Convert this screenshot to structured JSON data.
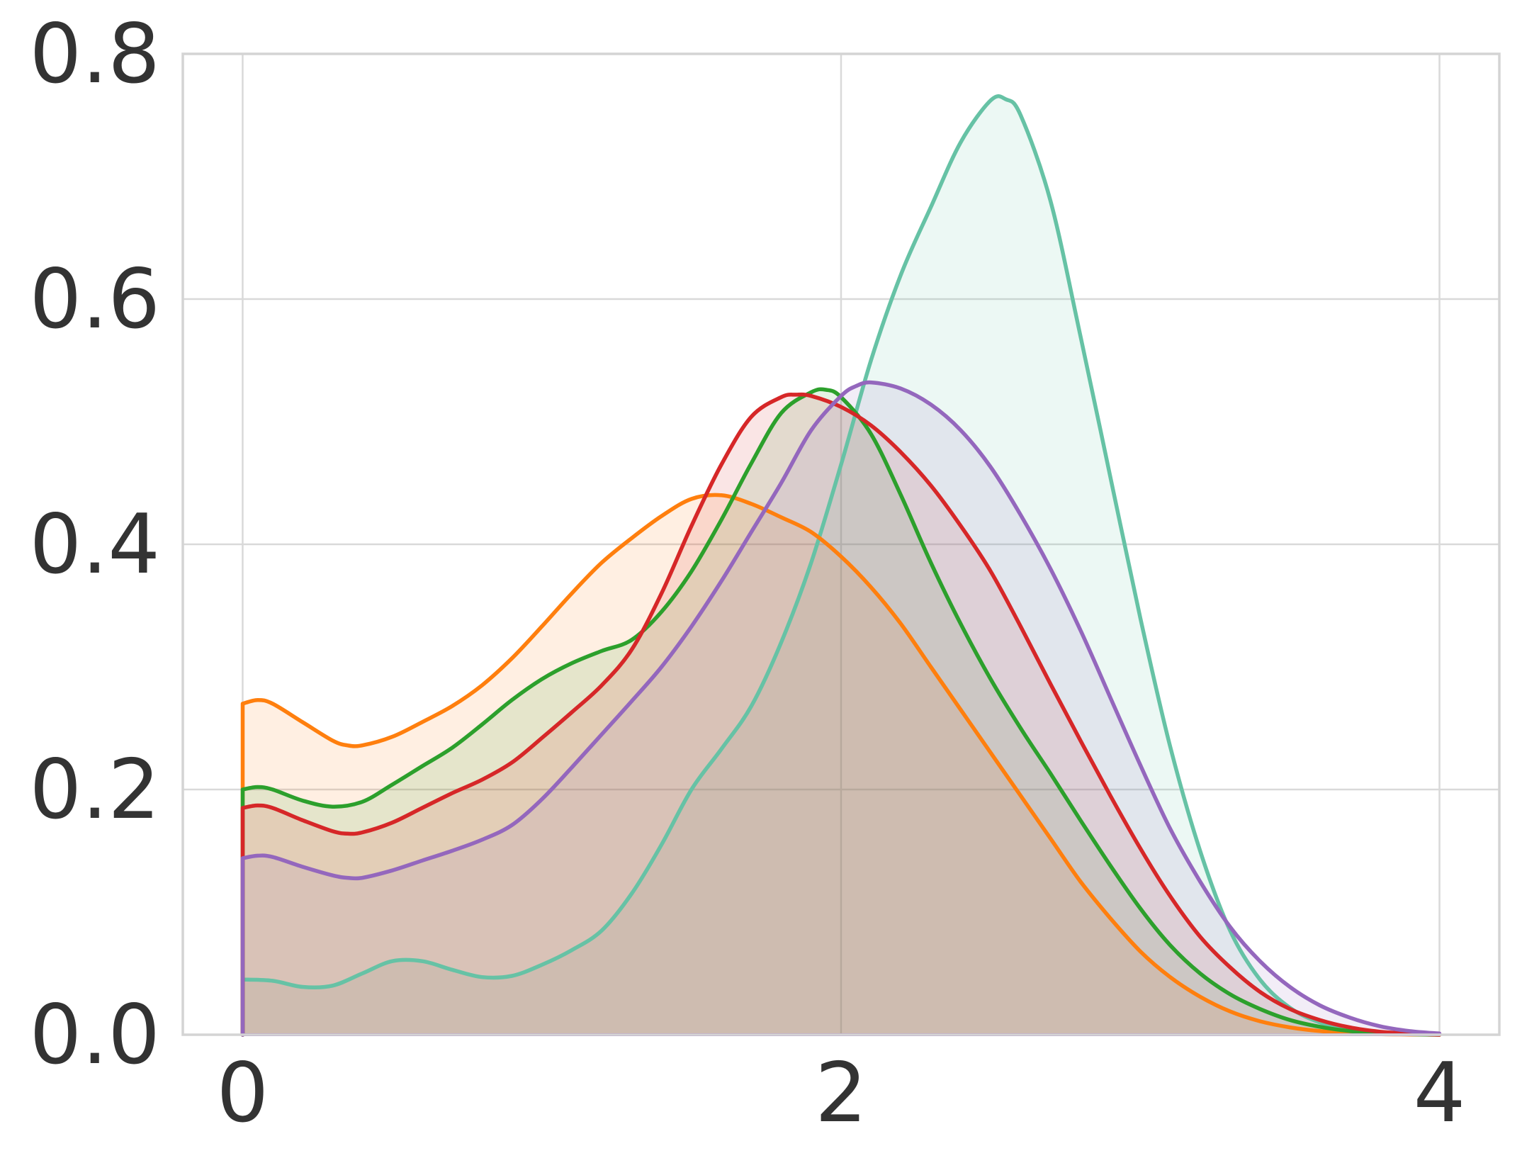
{
  "chart_data": {
    "type": "area",
    "title": "",
    "xlabel": "",
    "ylabel": "",
    "xlim": [
      -0.2,
      4.2
    ],
    "ylim": [
      0,
      0.8
    ],
    "xticks": [
      0,
      2,
      4
    ],
    "xtick_labels": [
      "0",
      "2",
      "4"
    ],
    "yticks": [
      0,
      0.2,
      0.4,
      0.6,
      0.8
    ],
    "ytick_labels": [
      "0.0",
      "0.2",
      "0.4",
      "0.6",
      "0.8"
    ],
    "grid": true,
    "legend": "none",
    "fill_opacity": 0.12,
    "series": [
      {
        "color": "#66c2a5",
        "points": [
          [
            0,
            0.045
          ],
          [
            0.1,
            0.044
          ],
          [
            0.2,
            0.039
          ],
          [
            0.3,
            0.04
          ],
          [
            0.4,
            0.05
          ],
          [
            0.5,
            0.06
          ],
          [
            0.6,
            0.06
          ],
          [
            0.7,
            0.053
          ],
          [
            0.8,
            0.047
          ],
          [
            0.9,
            0.048
          ],
          [
            1.0,
            0.057
          ],
          [
            1.1,
            0.069
          ],
          [
            1.2,
            0.085
          ],
          [
            1.3,
            0.115
          ],
          [
            1.4,
            0.155
          ],
          [
            1.5,
            0.2
          ],
          [
            1.6,
            0.233
          ],
          [
            1.7,
            0.268
          ],
          [
            1.8,
            0.32
          ],
          [
            1.9,
            0.385
          ],
          [
            2.0,
            0.465
          ],
          [
            2.1,
            0.55
          ],
          [
            2.2,
            0.62
          ],
          [
            2.3,
            0.675
          ],
          [
            2.4,
            0.728
          ],
          [
            2.5,
            0.762
          ],
          [
            2.55,
            0.763
          ],
          [
            2.6,
            0.75
          ],
          [
            2.7,
            0.68
          ],
          [
            2.8,
            0.57
          ],
          [
            2.9,
            0.455
          ],
          [
            3.0,
            0.34
          ],
          [
            3.1,
            0.235
          ],
          [
            3.2,
            0.15
          ],
          [
            3.3,
            0.085
          ],
          [
            3.4,
            0.045
          ],
          [
            3.5,
            0.022
          ],
          [
            3.6,
            0.01
          ],
          [
            3.7,
            0.004
          ],
          [
            3.8,
            0.0015
          ],
          [
            3.9,
            0.0005
          ],
          [
            4.0,
            0.0
          ]
        ]
      },
      {
        "color": "#ff7f0e",
        "points": [
          [
            0,
            0.27
          ],
          [
            0.05,
            0.273
          ],
          [
            0.1,
            0.27
          ],
          [
            0.2,
            0.255
          ],
          [
            0.3,
            0.24
          ],
          [
            0.35,
            0.236
          ],
          [
            0.4,
            0.236
          ],
          [
            0.5,
            0.243
          ],
          [
            0.6,
            0.255
          ],
          [
            0.7,
            0.268
          ],
          [
            0.8,
            0.285
          ],
          [
            0.9,
            0.307
          ],
          [
            1.0,
            0.333
          ],
          [
            1.1,
            0.36
          ],
          [
            1.2,
            0.385
          ],
          [
            1.3,
            0.405
          ],
          [
            1.4,
            0.423
          ],
          [
            1.5,
            0.437
          ],
          [
            1.6,
            0.44
          ],
          [
            1.7,
            0.433
          ],
          [
            1.8,
            0.422
          ],
          [
            1.9,
            0.41
          ],
          [
            2.0,
            0.39
          ],
          [
            2.1,
            0.365
          ],
          [
            2.2,
            0.335
          ],
          [
            2.3,
            0.3
          ],
          [
            2.4,
            0.265
          ],
          [
            2.5,
            0.23
          ],
          [
            2.6,
            0.195
          ],
          [
            2.7,
            0.16
          ],
          [
            2.8,
            0.125
          ],
          [
            2.9,
            0.095
          ],
          [
            3.0,
            0.068
          ],
          [
            3.1,
            0.047
          ],
          [
            3.2,
            0.031
          ],
          [
            3.3,
            0.019
          ],
          [
            3.4,
            0.011
          ],
          [
            3.5,
            0.006
          ],
          [
            3.6,
            0.003
          ],
          [
            3.7,
            0.0013
          ],
          [
            3.8,
            0.0005
          ],
          [
            3.9,
            0.0002
          ],
          [
            4.0,
            0.0
          ]
        ]
      },
      {
        "color": "#2ca02c",
        "points": [
          [
            0,
            0.2
          ],
          [
            0.05,
            0.202
          ],
          [
            0.1,
            0.2
          ],
          [
            0.2,
            0.191
          ],
          [
            0.3,
            0.186
          ],
          [
            0.4,
            0.19
          ],
          [
            0.5,
            0.204
          ],
          [
            0.6,
            0.219
          ],
          [
            0.7,
            0.234
          ],
          [
            0.8,
            0.253
          ],
          [
            0.9,
            0.273
          ],
          [
            1.0,
            0.29
          ],
          [
            1.1,
            0.303
          ],
          [
            1.2,
            0.313
          ],
          [
            1.3,
            0.322
          ],
          [
            1.4,
            0.345
          ],
          [
            1.5,
            0.378
          ],
          [
            1.6,
            0.42
          ],
          [
            1.7,
            0.466
          ],
          [
            1.8,
            0.507
          ],
          [
            1.9,
            0.524
          ],
          [
            1.95,
            0.526
          ],
          [
            2.0,
            0.52
          ],
          [
            2.1,
            0.49
          ],
          [
            2.2,
            0.44
          ],
          [
            2.3,
            0.385
          ],
          [
            2.4,
            0.335
          ],
          [
            2.5,
            0.29
          ],
          [
            2.6,
            0.25
          ],
          [
            2.7,
            0.213
          ],
          [
            2.8,
            0.175
          ],
          [
            2.9,
            0.138
          ],
          [
            3.0,
            0.103
          ],
          [
            3.1,
            0.073
          ],
          [
            3.2,
            0.05
          ],
          [
            3.3,
            0.033
          ],
          [
            3.4,
            0.021
          ],
          [
            3.5,
            0.012
          ],
          [
            3.6,
            0.0065
          ],
          [
            3.7,
            0.003
          ],
          [
            3.8,
            0.0012
          ],
          [
            3.9,
            0.0004
          ],
          [
            4.0,
            0.0
          ]
        ]
      },
      {
        "color": "#d62728",
        "points": [
          [
            0,
            0.185
          ],
          [
            0.05,
            0.187
          ],
          [
            0.1,
            0.185
          ],
          [
            0.2,
            0.175
          ],
          [
            0.3,
            0.166
          ],
          [
            0.35,
            0.164
          ],
          [
            0.4,
            0.165
          ],
          [
            0.5,
            0.173
          ],
          [
            0.6,
            0.185
          ],
          [
            0.7,
            0.197
          ],
          [
            0.8,
            0.208
          ],
          [
            0.9,
            0.222
          ],
          [
            1.0,
            0.242
          ],
          [
            1.1,
            0.263
          ],
          [
            1.2,
            0.285
          ],
          [
            1.3,
            0.314
          ],
          [
            1.4,
            0.36
          ],
          [
            1.5,
            0.415
          ],
          [
            1.6,
            0.465
          ],
          [
            1.7,
            0.504
          ],
          [
            1.8,
            0.52
          ],
          [
            1.85,
            0.522
          ],
          [
            1.9,
            0.521
          ],
          [
            2.0,
            0.512
          ],
          [
            2.1,
            0.497
          ],
          [
            2.2,
            0.475
          ],
          [
            2.3,
            0.448
          ],
          [
            2.4,
            0.415
          ],
          [
            2.5,
            0.378
          ],
          [
            2.6,
            0.333
          ],
          [
            2.7,
            0.286
          ],
          [
            2.8,
            0.24
          ],
          [
            2.9,
            0.195
          ],
          [
            3.0,
            0.152
          ],
          [
            3.1,
            0.113
          ],
          [
            3.2,
            0.08
          ],
          [
            3.3,
            0.055
          ],
          [
            3.4,
            0.035
          ],
          [
            3.5,
            0.021
          ],
          [
            3.6,
            0.012
          ],
          [
            3.7,
            0.006
          ],
          [
            3.8,
            0.0025
          ],
          [
            3.9,
            0.001
          ],
          [
            4.0,
            0.0
          ]
        ]
      },
      {
        "color": "#9467bd",
        "points": [
          [
            0,
            0.144
          ],
          [
            0.05,
            0.146
          ],
          [
            0.1,
            0.145
          ],
          [
            0.2,
            0.137
          ],
          [
            0.3,
            0.13
          ],
          [
            0.35,
            0.128
          ],
          [
            0.4,
            0.128
          ],
          [
            0.5,
            0.134
          ],
          [
            0.6,
            0.142
          ],
          [
            0.7,
            0.15
          ],
          [
            0.8,
            0.159
          ],
          [
            0.9,
            0.171
          ],
          [
            1.0,
            0.192
          ],
          [
            1.1,
            0.218
          ],
          [
            1.2,
            0.245
          ],
          [
            1.3,
            0.272
          ],
          [
            1.4,
            0.3
          ],
          [
            1.5,
            0.333
          ],
          [
            1.6,
            0.37
          ],
          [
            1.7,
            0.41
          ],
          [
            1.8,
            0.45
          ],
          [
            1.9,
            0.493
          ],
          [
            2.0,
            0.521
          ],
          [
            2.05,
            0.529
          ],
          [
            2.1,
            0.532
          ],
          [
            2.2,
            0.527
          ],
          [
            2.3,
            0.514
          ],
          [
            2.4,
            0.493
          ],
          [
            2.5,
            0.463
          ],
          [
            2.6,
            0.424
          ],
          [
            2.7,
            0.38
          ],
          [
            2.8,
            0.33
          ],
          [
            2.9,
            0.275
          ],
          [
            3.0,
            0.22
          ],
          [
            3.1,
            0.168
          ],
          [
            3.2,
            0.125
          ],
          [
            3.3,
            0.088
          ],
          [
            3.4,
            0.06
          ],
          [
            3.5,
            0.039
          ],
          [
            3.6,
            0.024
          ],
          [
            3.7,
            0.014
          ],
          [
            3.8,
            0.007
          ],
          [
            3.9,
            0.003
          ],
          [
            4.0,
            0.001
          ]
        ]
      }
    ]
  }
}
